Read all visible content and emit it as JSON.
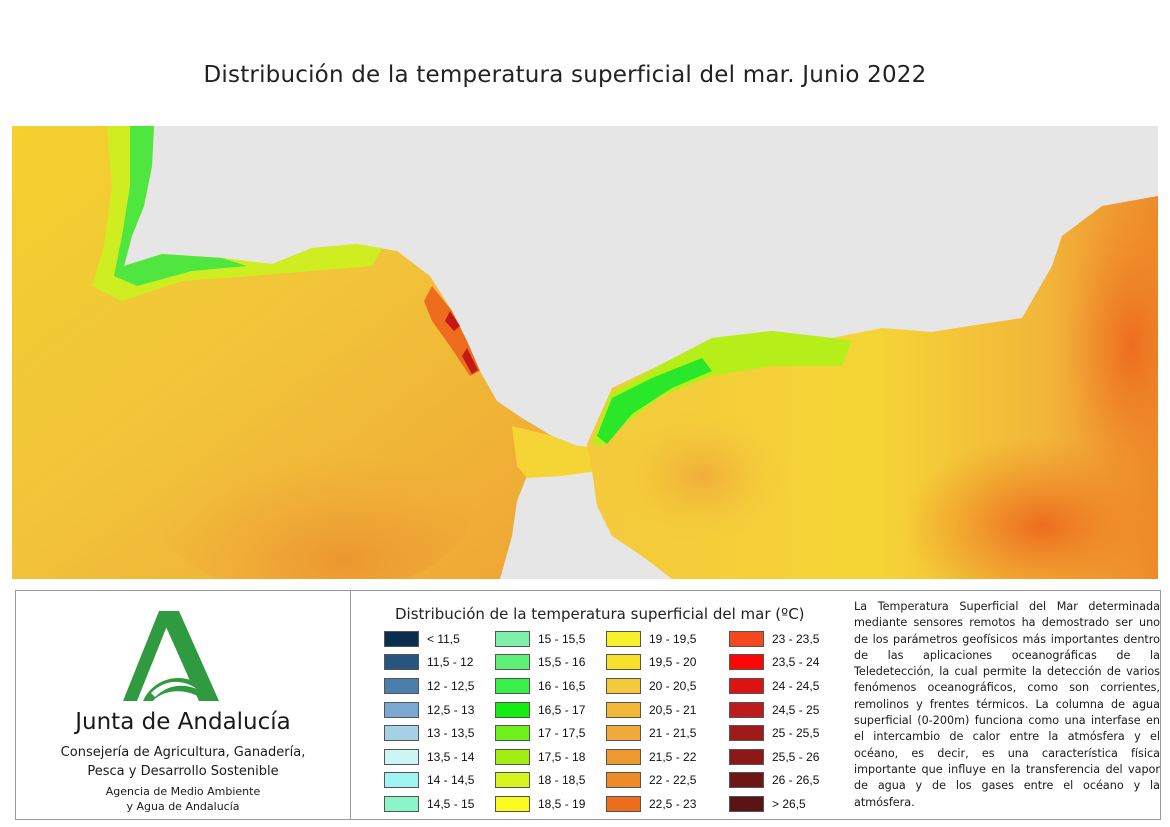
{
  "title": "Distribución de la temperatura superficial del mar. Junio 2022",
  "map": {
    "land_color": "#e6e6e6"
  },
  "logo": {
    "name": "Junta de Andalucía",
    "dept_line1": "Consejería de Agricultura, Ganadería,",
    "dept_line2": "Pesca y Desarrollo Sostenible",
    "agency_line1": "Agencia de Medio Ambiente",
    "agency_line2": "y Agua de Andalucía",
    "brand_color": "#2f9a3f"
  },
  "legend": {
    "title": "Distribución de la temperatura superficial del mar (ºC)",
    "columns": [
      [
        {
          "label": "< 11,5",
          "color": "#0b2d4e"
        },
        {
          "label": "11,5 - 12",
          "color": "#28557e"
        },
        {
          "label": "12 - 12,5",
          "color": "#4b7eaa"
        },
        {
          "label": "12,5 - 13",
          "color": "#79a9d1"
        },
        {
          "label": "13 - 13,5",
          "color": "#a6d0e6"
        },
        {
          "label": "13,5 - 14",
          "color": "#ccf5f5"
        },
        {
          "label": "14 - 14,5",
          "color": "#a0f4f4"
        },
        {
          "label": "14,5 - 15",
          "color": "#8cf5c8"
        }
      ],
      [
        {
          "label": "15 - 15,5",
          "color": "#7ff0a9"
        },
        {
          "label": "15,5 - 16",
          "color": "#5ff079"
        },
        {
          "label": "16 - 16,5",
          "color": "#38f04a"
        },
        {
          "label": "16,5 - 17",
          "color": "#12ee12"
        },
        {
          "label": "17 - 17,5",
          "color": "#6ef01a"
        },
        {
          "label": "17,5 - 18",
          "color": "#a2ee12"
        },
        {
          "label": "18 - 18,5",
          "color": "#d6f51f"
        },
        {
          "label": "18,5 - 19",
          "color": "#fbfb22"
        }
      ],
      [
        {
          "label": "19 - 19,5",
          "color": "#f7f02a"
        },
        {
          "label": "19,5 - 20",
          "color": "#f7e02a"
        },
        {
          "label": "20 - 20,5",
          "color": "#f4c93c"
        },
        {
          "label": "20,5 - 21",
          "color": "#f3b83a"
        },
        {
          "label": "21 - 21,5",
          "color": "#f0a93a"
        },
        {
          "label": "21,5 - 22",
          "color": "#ec9a30"
        },
        {
          "label": "22 - 22,5",
          "color": "#ee8a28"
        },
        {
          "label": "22,5 - 23",
          "color": "#ee6c1e"
        }
      ],
      [
        {
          "label": "23 - 23,5",
          "color": "#f5481e"
        },
        {
          "label": "23,5 - 24",
          "color": "#fc0606"
        },
        {
          "label": "24 - 24,5",
          "color": "#dd1212"
        },
        {
          "label": "24,5 - 25",
          "color": "#bc1c1c"
        },
        {
          "label": "25 - 25,5",
          "color": "#a11a1a"
        },
        {
          "label": "25,5 - 26",
          "color": "#8c1818"
        },
        {
          "label": "26 - 26,5",
          "color": "#6e1616"
        },
        {
          "label": "> 26,5",
          "color": "#5a1414"
        }
      ]
    ]
  },
  "info_text": "La Temperatura Superficial del Mar determinada mediante sensores remotos ha demostrado ser uno de los parámetros geofísicos más importantes dentro de las aplicaciones oceanográficas de la Teledetección, la cual permite la detección de varios fenómenos oceanográficos, como son corrientes, remolinos y frentes térmicos. La columna de agua superficial (0-200m) funciona como una interfase en el intercambio de calor entre la atmósfera y el océano, es decir, es una característica física importante que influye en la transferencia del vapor de agua y de los gases entre el océano y la atmósfera."
}
